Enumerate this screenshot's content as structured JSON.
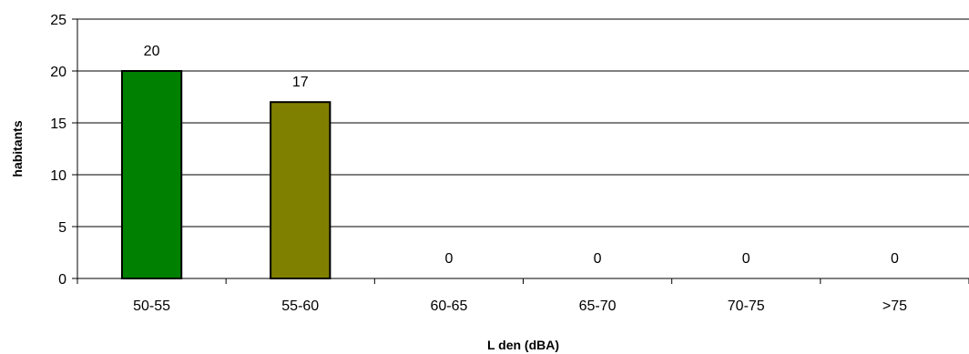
{
  "chart_data": {
    "type": "bar",
    "categories": [
      "50-55",
      "55-60",
      "60-65",
      "65-70",
      "70-75",
      ">75"
    ],
    "values": [
      20,
      17,
      0,
      0,
      0,
      0
    ],
    "data_labels": [
      "20",
      "17",
      "0",
      "0",
      "0",
      "0"
    ],
    "colors": [
      "#008000",
      "#808000",
      "#808080",
      "#808080",
      "#808080",
      "#808080"
    ],
    "xlabel": "L den (dBA)",
    "ylabel": "habitants",
    "ylim": [
      0,
      25
    ],
    "yticks": [
      "0",
      "5",
      "10",
      "15",
      "20",
      "25"
    ],
    "grid": true,
    "legend": "none"
  }
}
